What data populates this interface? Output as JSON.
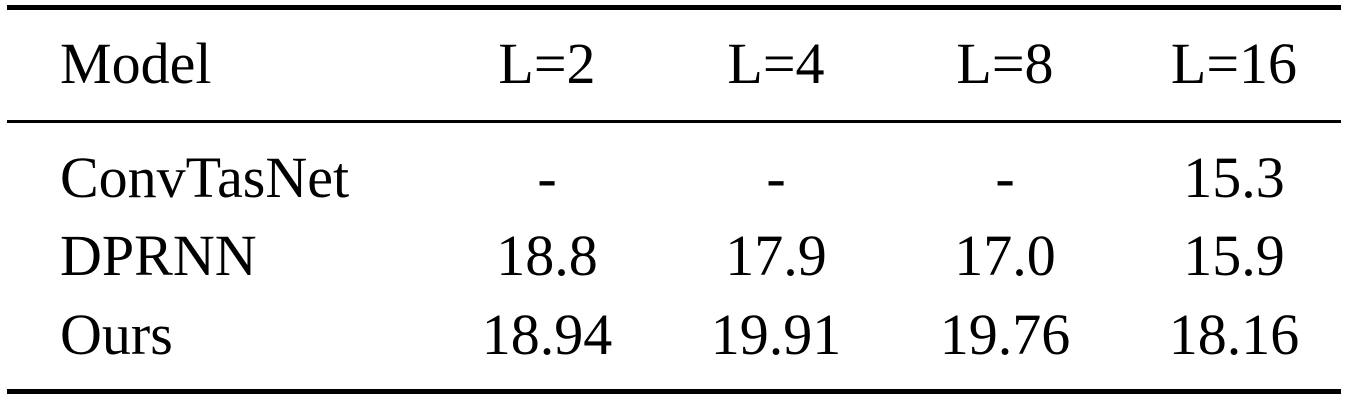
{
  "table": {
    "columns": [
      "Model",
      "L=2",
      "L=4",
      "L=8",
      "L=16"
    ],
    "rows": [
      [
        "ConvTasNet",
        "-",
        "-",
        "-",
        "15.3"
      ],
      [
        "DPRNN",
        "18.8",
        "17.9",
        "17.0",
        "15.9"
      ],
      [
        "Ours",
        "18.94",
        "19.91",
        "19.76",
        "18.16"
      ]
    ]
  }
}
